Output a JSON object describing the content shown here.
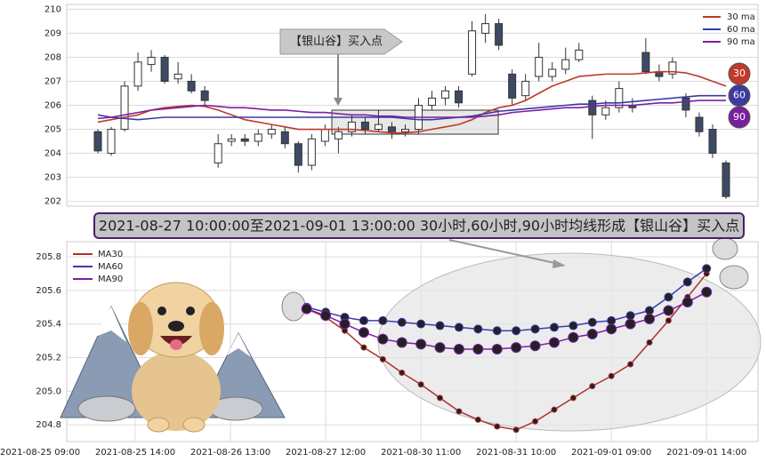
{
  "chart_data": [
    {
      "type": "candlestick",
      "annotation": "【银山谷】买入点",
      "legend": "upper right",
      "grid": true,
      "ylim": [
        201.8,
        210.2
      ],
      "yticks": [
        202,
        203,
        204,
        205,
        206,
        207,
        208,
        209,
        210
      ],
      "up_color": "#ffffff",
      "down_color": "#3d4a66",
      "open": [
        204.9,
        204.0,
        205.0,
        206.8,
        207.7,
        208.0,
        207.1,
        207.0,
        206.6,
        203.6,
        204.5,
        204.6,
        204.5,
        204.8,
        204.9,
        204.4,
        203.5,
        204.5,
        204.6,
        204.9,
        205.3,
        205.0,
        205.1,
        204.9,
        205.0,
        206.0,
        206.3,
        206.6,
        207.3,
        209.0,
        209.4,
        207.3,
        206.4,
        207.2,
        207.2,
        207.5,
        207.9,
        206.2,
        205.6,
        205.9,
        206.0,
        208.2,
        207.4,
        207.3,
        206.3,
        205.5,
        205.0,
        203.6
      ],
      "close": [
        204.1,
        205.0,
        206.8,
        207.8,
        208.0,
        207.0,
        207.3,
        206.6,
        206.2,
        204.4,
        204.6,
        204.5,
        204.8,
        205.0,
        204.4,
        203.5,
        204.6,
        205.0,
        204.9,
        205.3,
        205.0,
        205.2,
        204.9,
        205.0,
        206.0,
        206.3,
        206.6,
        206.1,
        209.1,
        209.4,
        208.5,
        206.3,
        207.0,
        208.0,
        207.5,
        207.9,
        208.3,
        205.6,
        205.9,
        206.7,
        205.9,
        207.4,
        207.2,
        207.8,
        205.8,
        204.9,
        204.0,
        202.2
      ],
      "high": [
        205.0,
        205.1,
        207.0,
        208.2,
        208.3,
        208.1,
        207.8,
        207.3,
        206.8,
        204.8,
        204.8,
        204.8,
        205.0,
        205.2,
        205.1,
        204.5,
        204.8,
        205.2,
        205.1,
        205.6,
        205.5,
        205.8,
        205.3,
        205.2,
        206.3,
        206.6,
        206.8,
        206.8,
        209.5,
        209.8,
        209.6,
        207.5,
        207.3,
        208.6,
        207.8,
        208.4,
        208.6,
        206.4,
        206.2,
        207.0,
        206.3,
        208.8,
        207.7,
        208.0,
        206.5,
        205.7,
        205.2,
        203.7
      ],
      "low": [
        204.0,
        203.9,
        204.9,
        206.6,
        207.4,
        206.9,
        206.9,
        206.5,
        206.0,
        203.4,
        204.3,
        204.3,
        204.3,
        204.6,
        204.2,
        203.2,
        203.3,
        204.3,
        204.0,
        204.7,
        204.8,
        204.9,
        204.6,
        204.7,
        204.8,
        205.8,
        206.0,
        205.9,
        207.2,
        208.6,
        208.3,
        206.0,
        206.2,
        207.0,
        207.0,
        207.3,
        207.8,
        204.6,
        205.4,
        205.7,
        205.7,
        207.3,
        207.0,
        207.1,
        205.5,
        204.7,
        203.8,
        202.1
      ],
      "series": [
        {
          "name": "30 ma",
          "badge": "30",
          "color": "#c0392b",
          "values": [
            205.3,
            205.4,
            205.5,
            205.6,
            205.8,
            205.9,
            205.95,
            206.0,
            205.95,
            205.8,
            205.6,
            205.4,
            205.3,
            205.2,
            205.1,
            205.0,
            205.0,
            205.0,
            205.0,
            205.0,
            204.95,
            204.9,
            204.85,
            204.85,
            204.9,
            205.0,
            205.1,
            205.2,
            205.4,
            205.7,
            205.9,
            206.0,
            206.2,
            206.5,
            206.8,
            207.0,
            207.2,
            207.25,
            207.3,
            207.3,
            207.3,
            207.35,
            207.4,
            207.4,
            207.35,
            207.2,
            207.0,
            206.8
          ]
        },
        {
          "name": "60 ma",
          "badge": "60",
          "color": "#3a3aa0",
          "values": [
            205.6,
            205.5,
            205.45,
            205.4,
            205.45,
            205.5,
            205.5,
            205.5,
            205.5,
            205.5,
            205.5,
            205.5,
            205.5,
            205.5,
            205.5,
            205.5,
            205.5,
            205.5,
            205.5,
            205.5,
            205.5,
            205.5,
            205.5,
            205.45,
            205.4,
            205.4,
            205.45,
            205.5,
            205.55,
            205.65,
            205.75,
            205.8,
            205.85,
            205.9,
            205.95,
            206.0,
            206.05,
            206.05,
            206.1,
            206.1,
            206.15,
            206.2,
            206.25,
            206.3,
            206.35,
            206.4,
            206.4,
            206.4
          ]
        },
        {
          "name": "90 ma",
          "badge": "90",
          "color": "#7b1fa2",
          "values": [
            205.45,
            205.5,
            205.6,
            205.7,
            205.8,
            205.85,
            205.9,
            205.95,
            206.0,
            205.95,
            205.9,
            205.9,
            205.85,
            205.8,
            205.8,
            205.75,
            205.7,
            205.7,
            205.65,
            205.6,
            205.6,
            205.55,
            205.55,
            205.5,
            205.5,
            205.5,
            205.5,
            205.5,
            205.5,
            205.55,
            205.6,
            205.7,
            205.75,
            205.8,
            205.85,
            205.9,
            205.9,
            205.95,
            206.0,
            206.0,
            206.0,
            206.05,
            206.1,
            206.1,
            206.15,
            206.2,
            206.2,
            206.2
          ]
        }
      ]
    },
    {
      "type": "line",
      "title": "2021-08-27 10:00:00至2021-09-01 13:00:00 30小时,60小时,90小时均线形成【银山谷】买入点",
      "legend": "upper left",
      "grid": true,
      "x": [
        14,
        15,
        16,
        17,
        18,
        19,
        20,
        21,
        22,
        23,
        24,
        25,
        26,
        27,
        28,
        29,
        30,
        31,
        32,
        33,
        34,
        35
      ],
      "xlim": [
        1.4,
        37.7
      ],
      "xticks": [
        {
          "value": 0,
          "label": "2021-08-25 09:00"
        },
        {
          "value": 5,
          "label": "2021-08-25 14:00"
        },
        {
          "value": 10,
          "label": "2021-08-26 13:00"
        },
        {
          "value": 15,
          "label": "2021-08-27 12:00"
        },
        {
          "value": 20,
          "label": "2021-08-30 11:00"
        },
        {
          "value": 25,
          "label": "2021-08-31 10:00"
        },
        {
          "value": 30,
          "label": "2021-09-01 09:00"
        },
        {
          "value": 35,
          "label": "2021-09-01 14:00"
        }
      ],
      "ylim": [
        204.7,
        205.89
      ],
      "yticks": [
        204.8,
        {
          "value": 205,
          "label": "205.0"
        },
        205.2,
        205.4,
        205.6,
        205.8
      ],
      "series": [
        {
          "name": "MA30",
          "color": "#b03030",
          "marker_size": 3,
          "values": [
            205.49,
            205.44,
            205.36,
            205.26,
            205.19,
            205.11,
            205.04,
            204.96,
            204.88,
            204.83,
            204.79,
            204.77,
            204.82,
            204.89,
            204.96,
            205.03,
            205.09,
            205.16,
            205.29,
            205.42,
            205.56,
            205.7
          ]
        },
        {
          "name": "MA60",
          "color": "#3b3bb0",
          "marker_size": 4.5,
          "values": [
            205.5,
            205.47,
            205.44,
            205.42,
            205.42,
            205.41,
            205.4,
            205.39,
            205.38,
            205.37,
            205.36,
            205.36,
            205.37,
            205.38,
            205.39,
            205.41,
            205.42,
            205.45,
            205.48,
            205.56,
            205.65,
            205.73
          ]
        },
        {
          "name": "MA90",
          "color": "#7b1fa2",
          "marker_size": 5.5,
          "values": [
            205.49,
            205.45,
            205.4,
            205.35,
            205.31,
            205.29,
            205.28,
            205.26,
            205.25,
            205.25,
            205.25,
            205.26,
            205.27,
            205.29,
            205.32,
            205.34,
            205.37,
            205.4,
            205.43,
            205.48,
            205.53,
            205.59
          ]
        }
      ]
    }
  ]
}
